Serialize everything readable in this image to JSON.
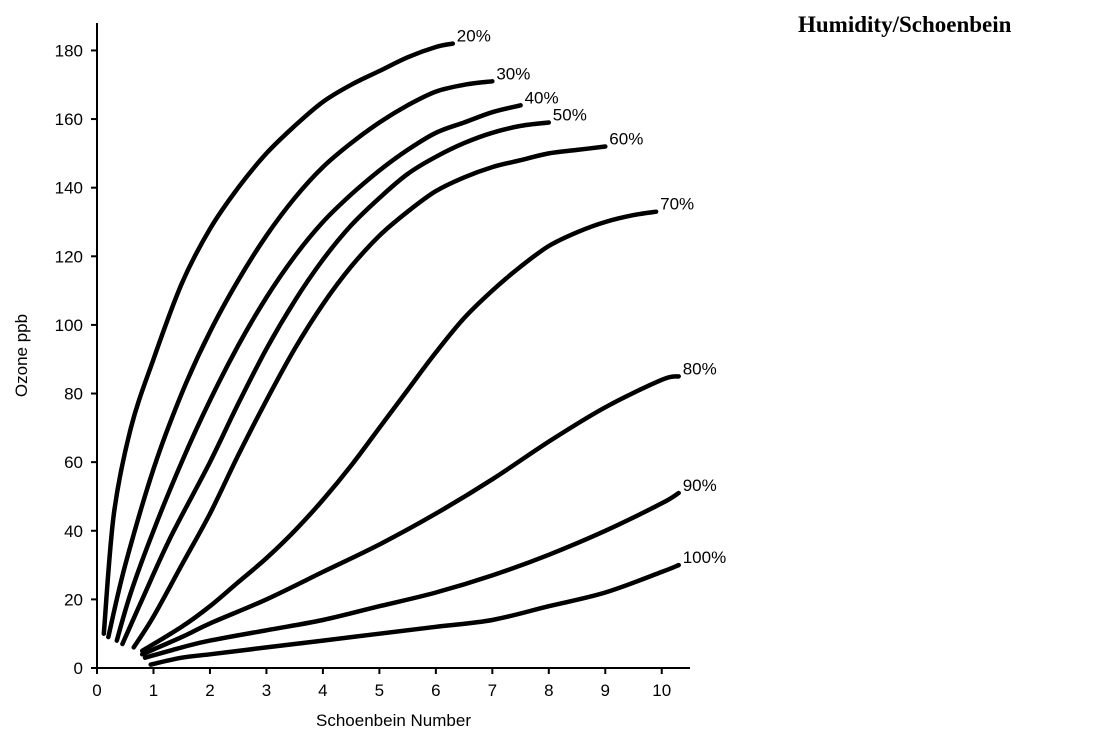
{
  "side_title": "Humidity/Schoenbein",
  "chart_data": {
    "type": "line",
    "title": "",
    "xlabel": "Schoenbein Number",
    "ylabel": "Ozone ppb",
    "xlim": [
      0,
      10.5
    ],
    "ylim": [
      0,
      188
    ],
    "xticks": [
      0,
      1,
      2,
      3,
      4,
      5,
      6,
      7,
      8,
      9,
      10
    ],
    "yticks": [
      0,
      20,
      40,
      60,
      80,
      100,
      120,
      140,
      160,
      180
    ],
    "grid": false,
    "line_color": "#000000",
    "series": [
      {
        "name": "20%",
        "points": [
          [
            0.12,
            10
          ],
          [
            0.3,
            45
          ],
          [
            0.6,
            70
          ],
          [
            1,
            90
          ],
          [
            1.5,
            112
          ],
          [
            2,
            128
          ],
          [
            2.5,
            140
          ],
          [
            3,
            150
          ],
          [
            3.5,
            158
          ],
          [
            4,
            165
          ],
          [
            4.5,
            170
          ],
          [
            5,
            174
          ],
          [
            5.5,
            178
          ],
          [
            6,
            181
          ],
          [
            6.3,
            182
          ]
        ]
      },
      {
        "name": "30%",
        "points": [
          [
            0.2,
            9
          ],
          [
            0.5,
            30
          ],
          [
            1,
            58
          ],
          [
            1.5,
            80
          ],
          [
            2,
            98
          ],
          [
            2.5,
            113
          ],
          [
            3,
            126
          ],
          [
            3.5,
            137
          ],
          [
            4,
            146
          ],
          [
            4.5,
            153
          ],
          [
            5,
            159
          ],
          [
            5.5,
            164
          ],
          [
            6,
            168
          ],
          [
            6.5,
            170
          ],
          [
            7,
            171
          ]
        ]
      },
      {
        "name": "40%",
        "points": [
          [
            0.35,
            8
          ],
          [
            0.6,
            22
          ],
          [
            1,
            40
          ],
          [
            1.5,
            60
          ],
          [
            2,
            78
          ],
          [
            2.5,
            94
          ],
          [
            3,
            108
          ],
          [
            3.5,
            120
          ],
          [
            4,
            130
          ],
          [
            4.5,
            138
          ],
          [
            5,
            145
          ],
          [
            5.5,
            151
          ],
          [
            6,
            156
          ],
          [
            6.5,
            159
          ],
          [
            7,
            162
          ],
          [
            7.5,
            164
          ]
        ]
      },
      {
        "name": "50%",
        "points": [
          [
            0.45,
            7
          ],
          [
            0.8,
            20
          ],
          [
            1.3,
            38
          ],
          [
            2,
            60
          ],
          [
            2.5,
            77
          ],
          [
            3,
            93
          ],
          [
            3.5,
            107
          ],
          [
            4,
            119
          ],
          [
            4.5,
            129
          ],
          [
            5,
            137
          ],
          [
            5.5,
            144
          ],
          [
            6,
            149
          ],
          [
            6.5,
            153
          ],
          [
            7,
            156
          ],
          [
            7.5,
            158
          ],
          [
            8,
            159
          ]
        ]
      },
      {
        "name": "60%",
        "points": [
          [
            0.65,
            6
          ],
          [
            1,
            15
          ],
          [
            1.5,
            30
          ],
          [
            2,
            45
          ],
          [
            2.5,
            62
          ],
          [
            3,
            78
          ],
          [
            3.5,
            93
          ],
          [
            4,
            106
          ],
          [
            4.5,
            117
          ],
          [
            5,
            126
          ],
          [
            5.5,
            133
          ],
          [
            6,
            139
          ],
          [
            6.5,
            143
          ],
          [
            7,
            146
          ],
          [
            7.5,
            148
          ],
          [
            8,
            150
          ],
          [
            8.5,
            151
          ],
          [
            9,
            152
          ]
        ]
      },
      {
        "name": "70%",
        "points": [
          [
            0.8,
            5
          ],
          [
            1.5,
            12
          ],
          [
            2,
            18
          ],
          [
            2.5,
            25
          ],
          [
            3,
            32
          ],
          [
            3.5,
            40
          ],
          [
            4,
            49
          ],
          [
            4.5,
            59
          ],
          [
            5,
            70
          ],
          [
            5.5,
            81
          ],
          [
            6,
            92
          ],
          [
            6.5,
            102
          ],
          [
            7,
            110
          ],
          [
            7.5,
            117
          ],
          [
            8,
            123
          ],
          [
            8.5,
            127
          ],
          [
            9,
            130
          ],
          [
            9.5,
            132
          ],
          [
            9.9,
            133
          ]
        ]
      },
      {
        "name": "80%",
        "points": [
          [
            0.8,
            4
          ],
          [
            1.5,
            9
          ],
          [
            2,
            13
          ],
          [
            3,
            20
          ],
          [
            4,
            28
          ],
          [
            5,
            36
          ],
          [
            6,
            45
          ],
          [
            7,
            55
          ],
          [
            8,
            66
          ],
          [
            9,
            76
          ],
          [
            10,
            84
          ],
          [
            10.3,
            85
          ]
        ]
      },
      {
        "name": "90%",
        "points": [
          [
            0.85,
            3
          ],
          [
            1.5,
            6
          ],
          [
            2,
            8
          ],
          [
            3,
            11
          ],
          [
            4,
            14
          ],
          [
            5,
            18
          ],
          [
            6,
            22
          ],
          [
            7,
            27
          ],
          [
            8,
            33
          ],
          [
            9,
            40
          ],
          [
            10,
            48
          ],
          [
            10.3,
            51
          ]
        ]
      },
      {
        "name": "100%",
        "points": [
          [
            0.95,
            1
          ],
          [
            1.5,
            3
          ],
          [
            2,
            4
          ],
          [
            3,
            6
          ],
          [
            4,
            8
          ],
          [
            5,
            10
          ],
          [
            6,
            12
          ],
          [
            7,
            14
          ],
          [
            8,
            18
          ],
          [
            9,
            22
          ],
          [
            10,
            28
          ],
          [
            10.3,
            30
          ]
        ]
      }
    ]
  }
}
